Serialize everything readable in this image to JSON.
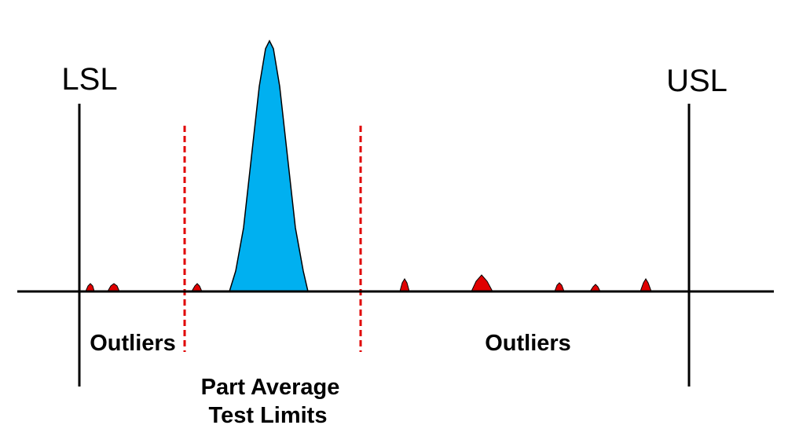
{
  "labels": {
    "lsl": "LSL",
    "usl": "USL",
    "outliers_left": "Outliers",
    "outliers_right": "Outliers",
    "pat_line1": "Part Average",
    "pat_line2": "Test Limits"
  },
  "colors": {
    "distribution_fill": "#00b0f0",
    "outlier_fill": "#e00000",
    "limit_line": "#e00000",
    "axis": "#000000"
  }
}
